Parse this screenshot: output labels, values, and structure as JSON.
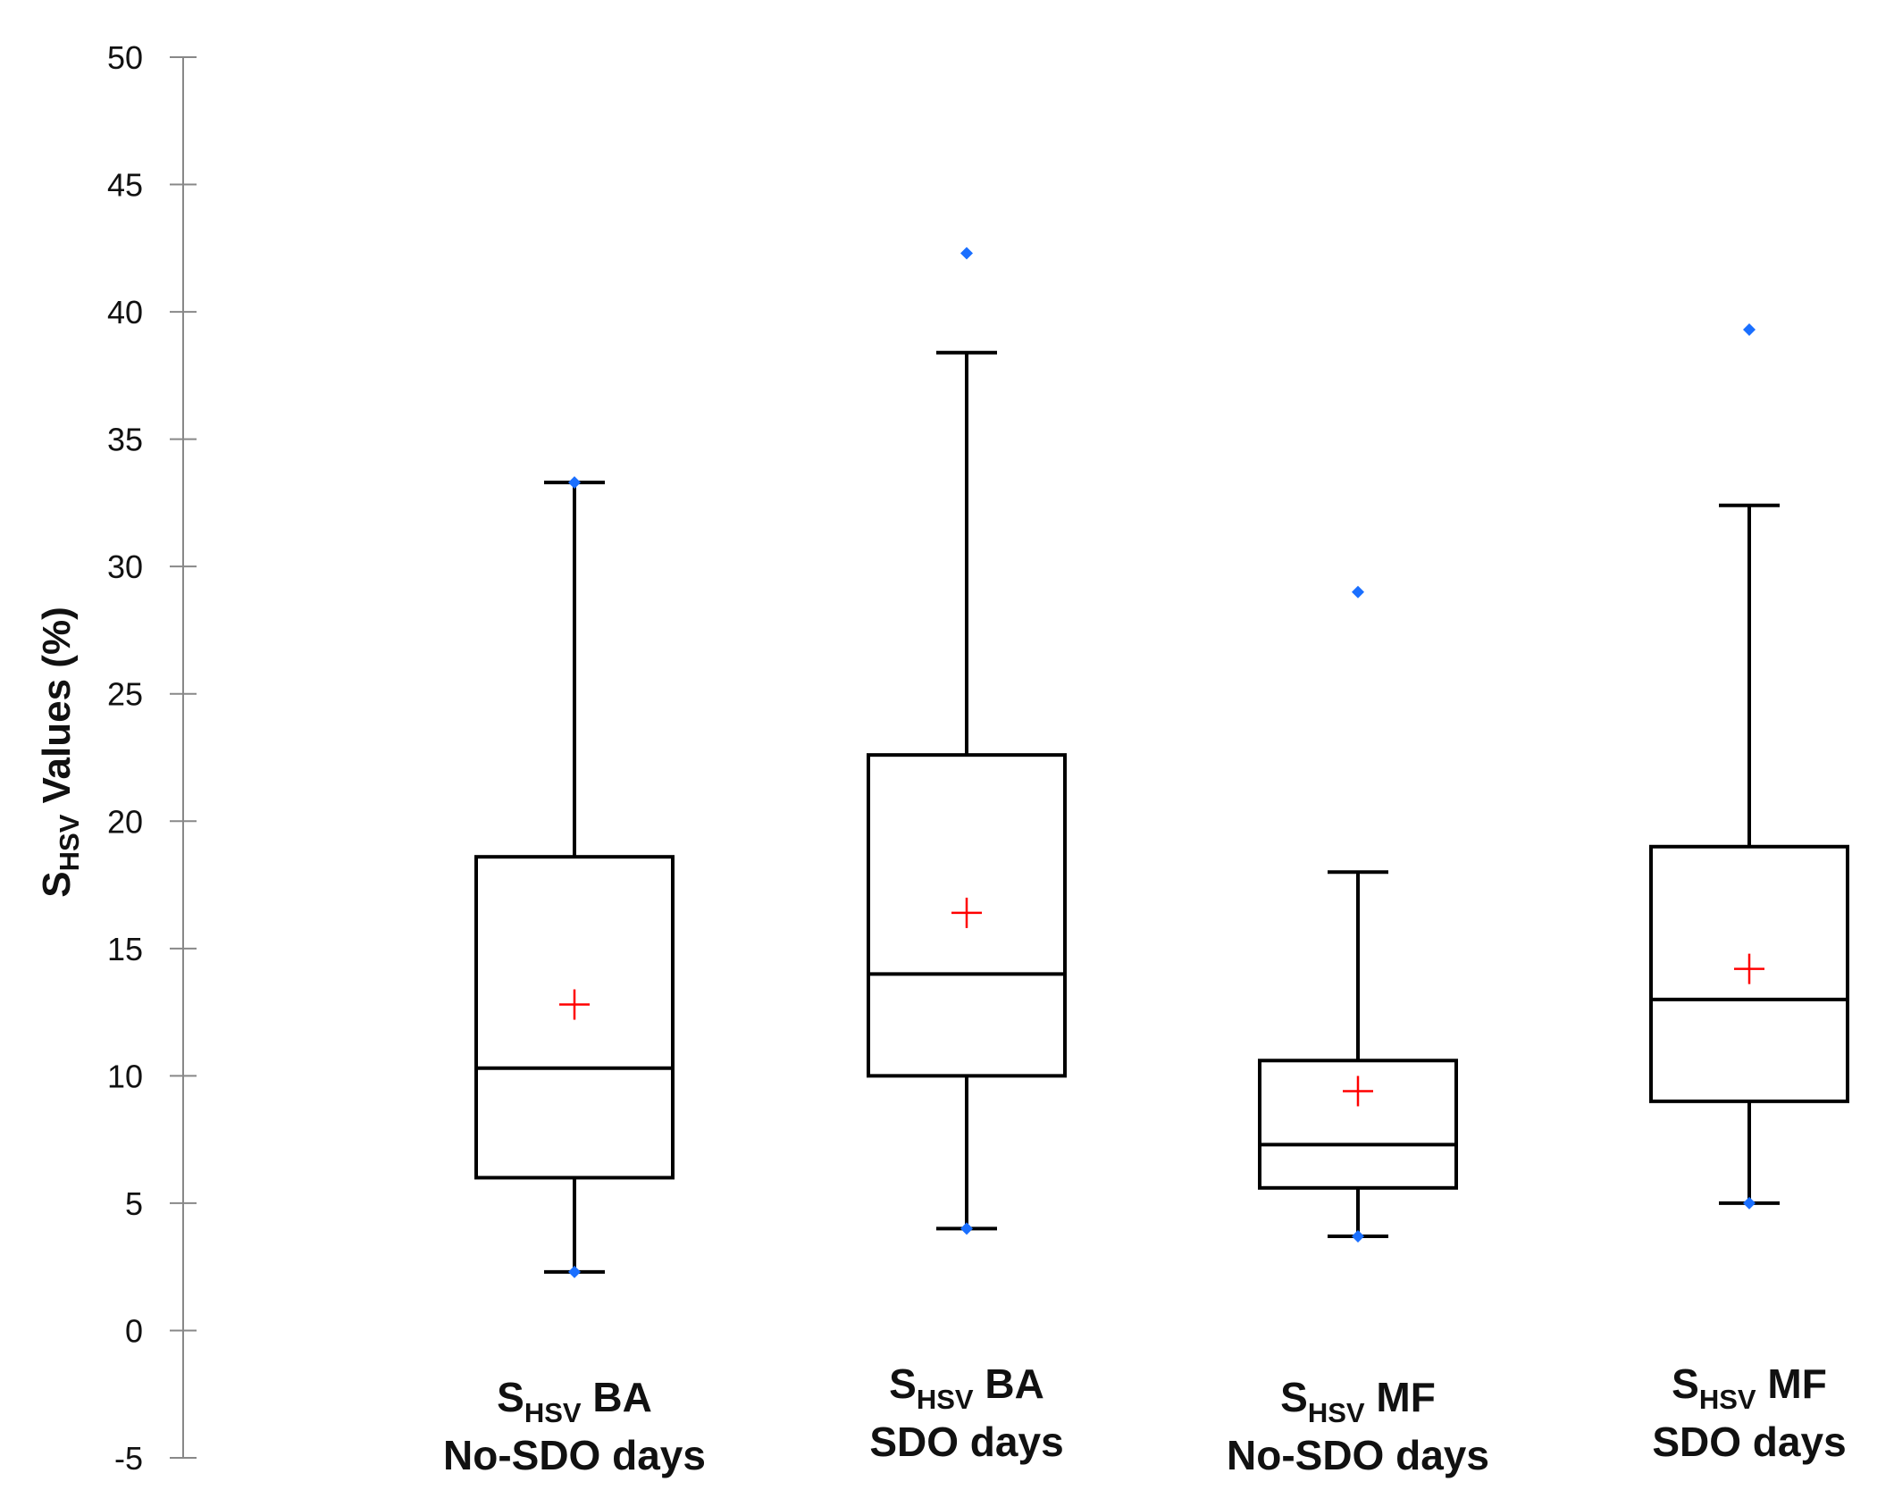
{
  "chart_data": {
    "type": "box",
    "ylabel": {
      "main": "S",
      "sub": "HSV",
      "rest": " Values (%)"
    },
    "ylim": [
      -5,
      50
    ],
    "yticks": [
      -5,
      0,
      5,
      10,
      15,
      20,
      25,
      30,
      35,
      40,
      45,
      50
    ],
    "grid": false,
    "colors": {
      "box": "#000000",
      "axis": "#888888",
      "outlier": "#1a6fff",
      "mean": "#ff0000"
    },
    "boxes": [
      {
        "name": "SHSV BA No-SDO days",
        "label_main": "S",
        "label_sub": "HSV",
        "label_rest": " BA",
        "label_line2": "No-SDO days",
        "whisker_low": 2.3,
        "q1": 6.0,
        "median": 10.3,
        "q3": 18.6,
        "whisker_high": 33.3,
        "mean": 12.8,
        "outliers": [
          33.3,
          2.3
        ]
      },
      {
        "name": "SHSV BA SDO days",
        "label_main": "S",
        "label_sub": "HSV",
        "label_rest": " BA",
        "label_line2": "SDO days",
        "whisker_low": 4.0,
        "q1": 10.0,
        "median": 14.0,
        "q3": 22.6,
        "whisker_high": 38.4,
        "mean": 16.4,
        "outliers": [
          42.3,
          4.0
        ]
      },
      {
        "name": "SHSV MF No-SDO days",
        "label_main": "S",
        "label_sub": "HSV",
        "label_rest": " MF",
        "label_line2": "No-SDO days",
        "whisker_low": 3.7,
        "q1": 5.6,
        "median": 7.3,
        "q3": 10.6,
        "whisker_high": 18.0,
        "mean": 9.4,
        "outliers": [
          29.0,
          3.7
        ]
      },
      {
        "name": "SHSV MF SDO days",
        "label_main": "S",
        "label_sub": "HSV",
        "label_rest": " MF",
        "label_line2": "SDO days",
        "whisker_low": 5.0,
        "q1": 9.0,
        "median": 13.0,
        "q3": 19.0,
        "whisker_high": 32.4,
        "mean": 14.2,
        "outliers": [
          39.3,
          5.0
        ]
      }
    ]
  }
}
